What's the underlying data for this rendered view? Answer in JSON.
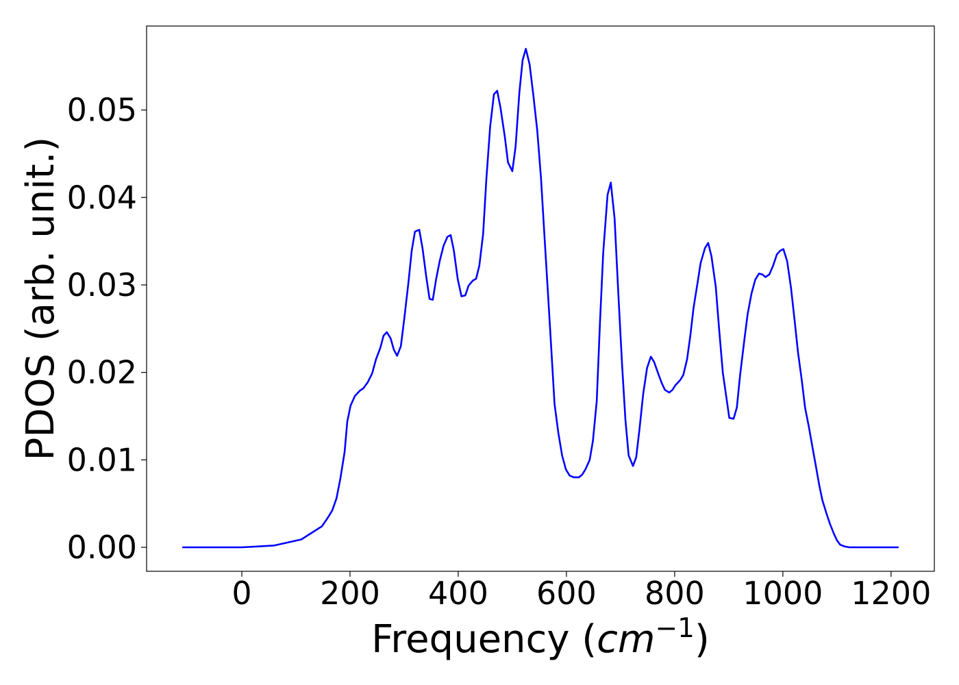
{
  "chart_data": {
    "type": "line",
    "xlabel": [
      "Frequency (",
      "cm",
      "−1",
      ")"
    ],
    "ylabel": "PDOS (arb. unit.)",
    "xlim": [
      -176,
      1280
    ],
    "ylim": [
      -0.00274,
      0.0596
    ],
    "xticks": [
      0,
      200,
      400,
      600,
      800,
      1000,
      1200
    ],
    "yticks": [
      {
        "value": 0,
        "label": "0.00"
      },
      {
        "value": 0.01,
        "label": "0.01"
      },
      {
        "value": 0.02,
        "label": "0.02"
      },
      {
        "value": 0.03,
        "label": "0.03"
      },
      {
        "value": 0.04,
        "label": "0.04"
      },
      {
        "value": 0.05,
        "label": "0.05"
      }
    ],
    "grid": false,
    "x": [
      -110,
      0,
      59,
      110,
      148,
      158,
      167,
      175,
      182,
      190,
      195,
      201,
      209,
      218,
      225,
      233,
      241,
      248,
      256,
      262,
      268,
      275,
      281,
      287,
      294,
      300,
      308,
      314,
      320,
      328,
      334,
      341,
      347,
      353,
      359,
      366,
      373,
      380,
      386,
      392,
      399,
      406,
      413,
      419,
      427,
      433,
      439,
      446,
      452,
      459,
      466,
      472,
      478,
      486,
      492,
      500,
      506,
      513,
      519,
      525,
      532,
      539,
      546,
      553,
      559,
      566,
      572,
      578,
      585,
      592,
      599,
      606,
      614,
      623,
      629,
      635,
      643,
      649,
      656,
      662,
      668,
      676,
      682,
      689,
      696,
      703,
      709,
      715,
      723,
      729,
      735,
      742,
      749,
      756,
      762,
      770,
      776,
      782,
      790,
      796,
      801,
      810,
      816,
      823,
      829,
      835,
      842,
      848,
      856,
      862,
      868,
      876,
      882,
      889,
      895,
      901,
      909,
      915,
      921,
      929,
      935,
      942,
      949,
      956,
      962,
      968,
      975,
      982,
      989,
      995,
      1001,
      1008,
      1015,
      1022,
      1028,
      1035,
      1041,
      1048,
      1054,
      1061,
      1067,
      1073,
      1081,
      1087,
      1094,
      1100,
      1106,
      1114,
      1123,
      1214
    ],
    "series": [
      {
        "name": "PDOS",
        "color": "#0000ff",
        "values": [
          0,
          0,
          0.0002,
          0.0009,
          0.0024,
          0.0033,
          0.0042,
          0.0056,
          0.0078,
          0.0109,
          0.0144,
          0.0162,
          0.0173,
          0.0179,
          0.0182,
          0.0189,
          0.0199,
          0.0215,
          0.0228,
          0.0242,
          0.0246,
          0.0239,
          0.0226,
          0.0219,
          0.023,
          0.026,
          0.0303,
          0.0339,
          0.0361,
          0.0363,
          0.0342,
          0.0309,
          0.0284,
          0.0283,
          0.0306,
          0.0328,
          0.0345,
          0.0355,
          0.0357,
          0.0339,
          0.0307,
          0.0287,
          0.0288,
          0.0299,
          0.0305,
          0.0307,
          0.0322,
          0.0358,
          0.0421,
          0.0481,
          0.0518,
          0.0522,
          0.0503,
          0.047,
          0.044,
          0.043,
          0.0458,
          0.052,
          0.0557,
          0.057,
          0.0552,
          0.0516,
          0.0477,
          0.0422,
          0.036,
          0.0289,
          0.0227,
          0.0164,
          0.0131,
          0.0105,
          0.0089,
          0.0082,
          0.008,
          0.008,
          0.0083,
          0.0089,
          0.01,
          0.0122,
          0.0167,
          0.0257,
          0.0337,
          0.0403,
          0.0417,
          0.0376,
          0.0289,
          0.0207,
          0.0146,
          0.0105,
          0.0093,
          0.0103,
          0.0135,
          0.0176,
          0.0205,
          0.0218,
          0.0212,
          0.0198,
          0.0188,
          0.018,
          0.0177,
          0.018,
          0.0185,
          0.0191,
          0.0197,
          0.0215,
          0.0242,
          0.0274,
          0.0301,
          0.0325,
          0.0342,
          0.0348,
          0.0333,
          0.0298,
          0.0251,
          0.02,
          0.0174,
          0.0148,
          0.0147,
          0.016,
          0.0197,
          0.0238,
          0.0267,
          0.029,
          0.0306,
          0.0313,
          0.0312,
          0.0309,
          0.0312,
          0.0322,
          0.0335,
          0.0339,
          0.0341,
          0.0327,
          0.0297,
          0.0258,
          0.0223,
          0.0191,
          0.016,
          0.0138,
          0.0117,
          0.0093,
          0.0072,
          0.0054,
          0.0038,
          0.0027,
          0.0016,
          0.0008,
          0.0003,
          0.0001,
          0,
          0
        ]
      }
    ]
  }
}
